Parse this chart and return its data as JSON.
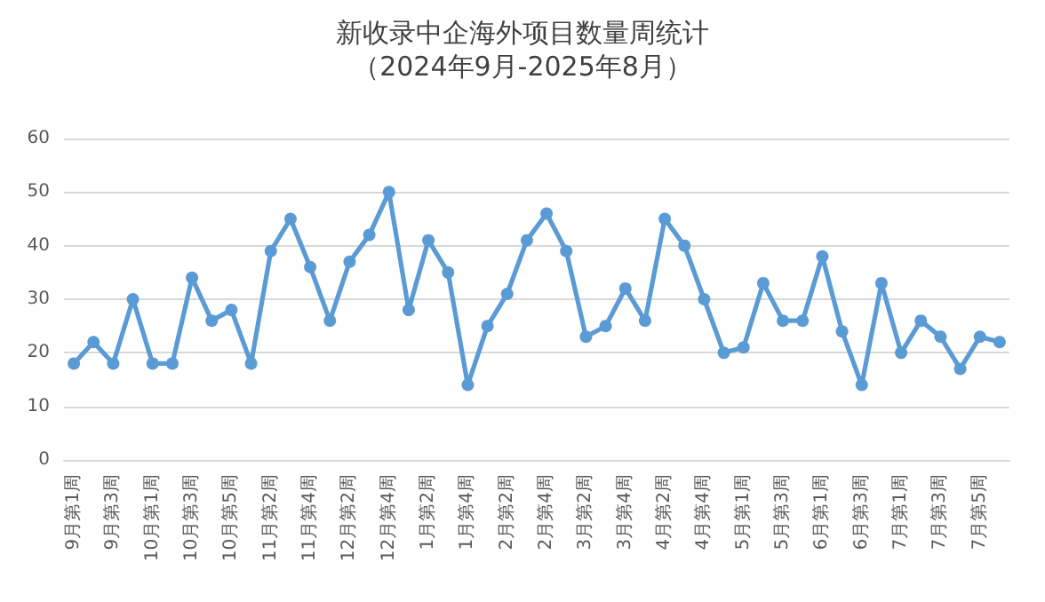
{
  "chart_data": {
    "type": "line",
    "title": "新收录中企海外项目数量周统计",
    "subtitle": "（2024年9月-2025年8月）",
    "categories": [
      "9月第1周",
      null,
      "9月第3周",
      null,
      "10月第1周",
      null,
      "10月第3周",
      null,
      "10月第5周",
      null,
      "11月第2周",
      null,
      "11月第4周",
      null,
      "12月第2周",
      null,
      "12月第4周",
      null,
      "1月第2周",
      null,
      "1月第4周",
      null,
      "2月第2周",
      null,
      "2月第4周",
      null,
      "3月第2周",
      null,
      "3月第4周",
      null,
      "4月第2周",
      null,
      "4月第4周",
      null,
      "5月第1周",
      null,
      "5月第3周",
      null,
      "6月第1周",
      null,
      "6月第3周",
      null,
      "7月第1周",
      null,
      "7月第3周",
      null,
      "7月第5周",
      null
    ],
    "series": [
      {
        "color": "#5b9bd5",
        "values": [
          18,
          22,
          18,
          30,
          18,
          18,
          34,
          26,
          28,
          18,
          39,
          45,
          36,
          26,
          37,
          42,
          50,
          28,
          41,
          35,
          14,
          25,
          31,
          41,
          46,
          39,
          23,
          25,
          32,
          26,
          45,
          40,
          30,
          20,
          21,
          33,
          26,
          26,
          38,
          24,
          14,
          33,
          20,
          26,
          23,
          17,
          23,
          22
        ]
      }
    ],
    "ylim": [
      0,
      60
    ],
    "yticks": [
      0,
      10,
      20,
      30,
      40,
      50,
      60
    ],
    "grid": "y",
    "marker": "circle",
    "line_style": "solid"
  }
}
